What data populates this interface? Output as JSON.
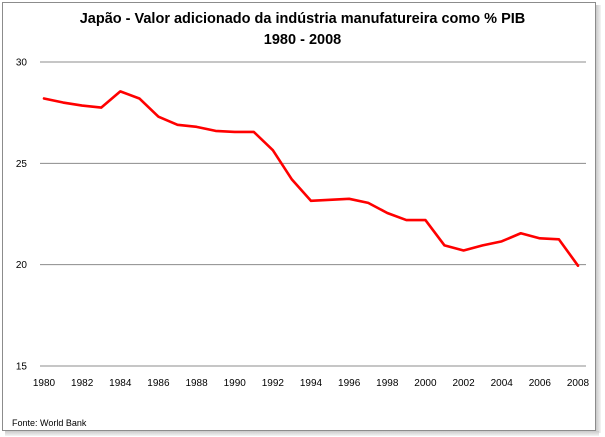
{
  "chart_data": {
    "type": "line",
    "title": "Japão - Valor adicionado da indústria manufatureira como % PIB",
    "subtitle": "1980 - 2008",
    "xlabel": "",
    "ylabel": "",
    "x": [
      1980,
      1981,
      1982,
      1983,
      1984,
      1985,
      1986,
      1987,
      1988,
      1989,
      1990,
      1991,
      1992,
      1993,
      1994,
      1995,
      1996,
      1997,
      1998,
      1999,
      2000,
      2001,
      2002,
      2003,
      2004,
      2005,
      2006,
      2007,
      2008
    ],
    "series": [
      {
        "values": [
          28.2,
          28.0,
          27.85,
          27.75,
          28.55,
          28.2,
          27.3,
          26.9,
          26.8,
          26.6,
          26.55,
          26.55,
          25.65,
          24.2,
          23.15,
          23.2,
          23.25,
          23.05,
          22.55,
          22.2,
          22.2,
          20.95,
          20.7,
          20.95,
          21.15,
          21.55,
          21.3,
          21.25,
          19.95
        ],
        "color": "#ff0000"
      }
    ],
    "xticks": [
      "1980",
      "1982",
      "1984",
      "1986",
      "1988",
      "1990",
      "1992",
      "1994",
      "1996",
      "1998",
      "2000",
      "2002",
      "2004",
      "2006",
      "2008"
    ],
    "yticks": [
      "15",
      "20",
      "25",
      "30"
    ],
    "ylim": [
      15,
      30
    ],
    "xlim": [
      1980,
      2008
    ],
    "grid": "horizontal"
  },
  "source_text": "Fonte: World Bank"
}
